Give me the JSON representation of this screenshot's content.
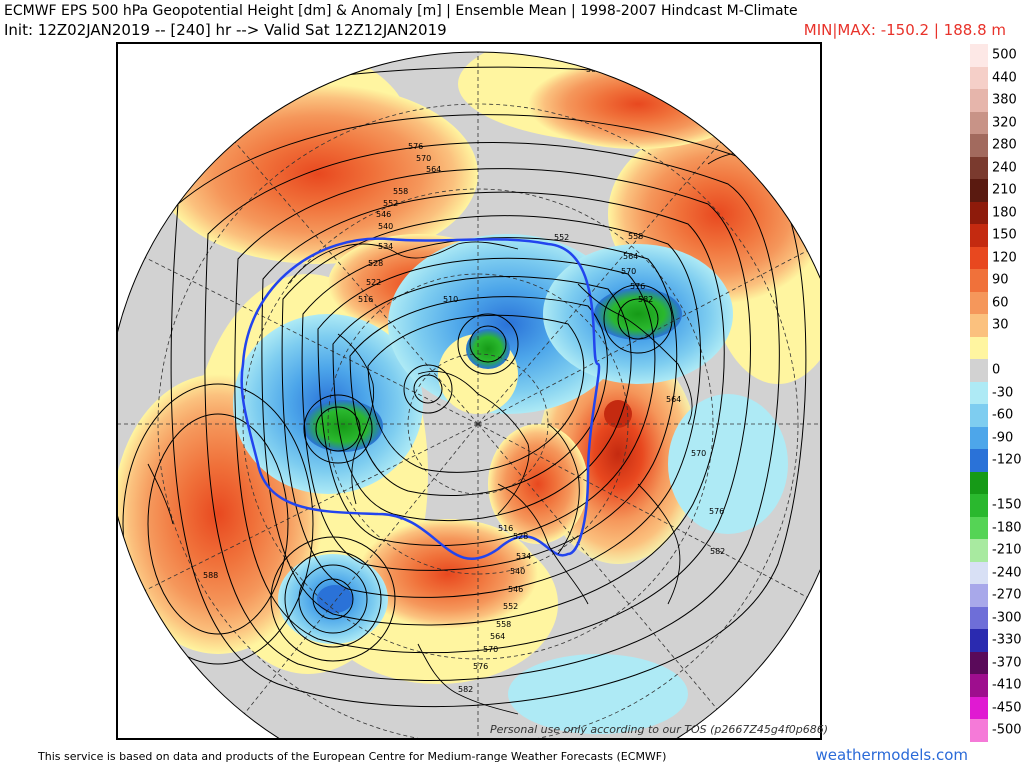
{
  "header": {
    "title": "ECMWF EPS 500 hPa Geopotential Height [dm] & Anomaly [m] | Ensemble Mean | 1998-2007 Hindcast M-Climate",
    "init_line": "Init: 12Z02JAN2019 -- [240] hr --> Valid Sat 12Z12JAN2019",
    "minmax": "MIN|MAX: -150.2 | 188.8 m"
  },
  "map": {
    "watermark": "Personal use only according to our TOS (p2667Z45g4f0p686)",
    "contour_labels": [
      "588",
      "588",
      "576",
      "570",
      "564",
      "558",
      "552",
      "546",
      "540",
      "534",
      "528",
      "522",
      "516",
      "510",
      "564",
      "570",
      "576",
      "582",
      "588",
      "582",
      "576",
      "570",
      "564",
      "558",
      "552",
      "546",
      "540",
      "534",
      "528",
      "516",
      "552",
      "558",
      "564",
      "570",
      "576",
      "582"
    ]
  },
  "colorbar": {
    "entries": [
      {
        "label": "500",
        "color": "#fde8e6"
      },
      {
        "label": "440",
        "color": "#f5cfc8"
      },
      {
        "label": "380",
        "color": "#e6b5ab"
      },
      {
        "label": "320",
        "color": "#c89387"
      },
      {
        "label": "280",
        "color": "#a26a5e"
      },
      {
        "label": "240",
        "color": "#7a3a2e"
      },
      {
        "label": "210",
        "color": "#5a1a10"
      },
      {
        "label": "180",
        "color": "#8e1b0b"
      },
      {
        "label": "150",
        "color": "#c42a10"
      },
      {
        "label": "120",
        "color": "#e8481f"
      },
      {
        "label": "90",
        "color": "#f0713a"
      },
      {
        "label": "60",
        "color": "#f5975b"
      },
      {
        "label": "30",
        "color": "#fbc17e"
      },
      {
        "label": "",
        "color": "#fff5a0"
      },
      {
        "label": "0",
        "color": "#d2d2d2"
      },
      {
        "label": "-30",
        "color": "#aeeaf5"
      },
      {
        "label": "-60",
        "color": "#7ecdf0"
      },
      {
        "label": "-90",
        "color": "#4da6ea"
      },
      {
        "label": "-120",
        "color": "#2a72d8"
      },
      {
        "label": "",
        "color": "#169a17"
      },
      {
        "label": "-150",
        "color": "#2ab82e"
      },
      {
        "label": "-180",
        "color": "#55d455"
      },
      {
        "label": "-210",
        "color": "#a8eaa0"
      },
      {
        "label": "-240",
        "color": "#d8e0f5"
      },
      {
        "label": "-270",
        "color": "#a8a8ea"
      },
      {
        "label": "-300",
        "color": "#6e6ed8"
      },
      {
        "label": "-330",
        "color": "#2a2ab0"
      },
      {
        "label": "-370",
        "color": "#5a0a5a"
      },
      {
        "label": "-410",
        "color": "#9e0e8e"
      },
      {
        "label": "-450",
        "color": "#e01ad2"
      },
      {
        "label": "-500",
        "color": "#f57ad8"
      }
    ]
  },
  "footer": {
    "credit": "This service is based on data and products of the European Centre for Medium-range Weather Forecasts (ECMWF)",
    "site": "weathermodels.com"
  }
}
